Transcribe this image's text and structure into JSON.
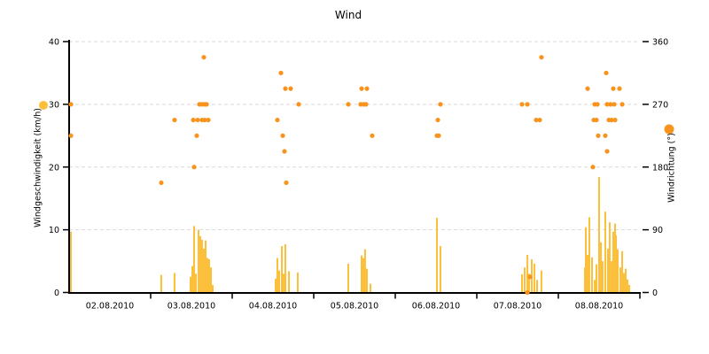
{
  "chart_data": {
    "type": "mixed",
    "title": "Wind",
    "x_axis": {
      "unit": "days since 02.08.2010 00:00",
      "labels": [
        "02.08.2010",
        "03.08.2010",
        "04.08.2010",
        "05.08.2010",
        "06.08.2010",
        "07.08.2010",
        "08.08.2010"
      ],
      "range_days": [
        0,
        7
      ]
    },
    "left_axis": {
      "title": "Windgeschwindigkeit (km/h)",
      "min": 0,
      "max": 40,
      "ticks": [
        0,
        10,
        20,
        30,
        40
      ]
    },
    "right_axis": {
      "title": "Windrichtung (°)",
      "min": 0,
      "max": 360,
      "ticks": [
        0,
        90,
        180,
        270,
        360
      ]
    },
    "grid": {
      "horizontal": "dashed",
      "color": "#D9D9D9"
    },
    "colors": {
      "speed": "#FCBF3A",
      "direction": "#F8941D",
      "axis": "#000000"
    },
    "series": [
      {
        "name": "Windgeschwindigkeit",
        "type": "bar",
        "axis": "left",
        "color": "#FCBF3A",
        "points": [
          [
            0.022,
            9.7
          ],
          [
            1.13,
            2.8
          ],
          [
            1.293,
            3.1
          ],
          [
            1.489,
            2.5
          ],
          [
            1.511,
            4.2
          ],
          [
            1.533,
            10.6
          ],
          [
            1.554,
            3.0
          ],
          [
            1.587,
            10.0
          ],
          [
            1.609,
            9.0
          ],
          [
            1.63,
            8.4
          ],
          [
            1.652,
            7.0
          ],
          [
            1.674,
            8.3
          ],
          [
            1.696,
            5.5
          ],
          [
            1.717,
            5.3
          ],
          [
            1.739,
            4.0
          ],
          [
            1.761,
            1.2
          ],
          [
            2.533,
            2.2
          ],
          [
            2.554,
            5.5
          ],
          [
            2.576,
            3.5
          ],
          [
            2.609,
            7.4
          ],
          [
            2.63,
            3.0
          ],
          [
            2.652,
            7.7
          ],
          [
            2.696,
            3.4
          ],
          [
            2.804,
            3.2
          ],
          [
            3.424,
            4.6
          ],
          [
            3.587,
            5.9
          ],
          [
            3.609,
            5.5
          ],
          [
            3.63,
            6.9
          ],
          [
            3.652,
            3.8
          ],
          [
            3.696,
            1.4
          ],
          [
            4.511,
            11.9
          ],
          [
            4.554,
            7.4
          ],
          [
            5.554,
            2.9
          ],
          [
            5.587,
            4.0
          ],
          [
            5.62,
            6.0
          ],
          [
            5.641,
            3.0
          ],
          [
            5.674,
            5.3
          ],
          [
            5.707,
            4.6
          ],
          [
            5.739,
            2.0
          ],
          [
            5.793,
            3.5
          ],
          [
            6.326,
            4.0
          ],
          [
            6.337,
            10.4
          ],
          [
            6.359,
            6.0
          ],
          [
            6.38,
            12.0
          ],
          [
            6.413,
            5.6
          ],
          [
            6.446,
            2.0
          ],
          [
            6.467,
            4.5
          ],
          [
            6.5,
            18.4
          ],
          [
            6.522,
            8.0
          ],
          [
            6.543,
            5.0
          ],
          [
            6.576,
            12.9
          ],
          [
            6.609,
            7.0
          ],
          [
            6.63,
            11.2
          ],
          [
            6.652,
            5.0
          ],
          [
            6.674,
            9.7
          ],
          [
            6.696,
            11.0
          ],
          [
            6.707,
            9.1
          ],
          [
            6.728,
            6.9
          ],
          [
            6.761,
            4.0
          ],
          [
            6.783,
            6.6
          ],
          [
            6.804,
            3.1
          ],
          [
            6.826,
            3.8
          ],
          [
            6.848,
            2.1
          ],
          [
            6.87,
            1.2
          ]
        ]
      },
      {
        "name": "Windrichtung",
        "type": "scatter",
        "axis": "right",
        "color": "#F8941D",
        "points": [
          [
            0.022,
            270
          ],
          [
            0.022,
            225
          ],
          [
            1.13,
            157.5
          ],
          [
            1.293,
            247.5
          ],
          [
            1.522,
            247.5
          ],
          [
            1.533,
            180
          ],
          [
            1.565,
            225
          ],
          [
            1.576,
            247.5
          ],
          [
            1.598,
            270
          ],
          [
            1.63,
            270
          ],
          [
            1.63,
            247.5
          ],
          [
            1.652,
            337.5
          ],
          [
            1.663,
            270
          ],
          [
            1.663,
            247.5
          ],
          [
            1.685,
            270
          ],
          [
            1.707,
            247.5
          ],
          [
            2.554,
            247.5
          ],
          [
            2.598,
            315
          ],
          [
            2.62,
            225
          ],
          [
            2.641,
            202.5
          ],
          [
            2.652,
            292.5
          ],
          [
            2.663,
            157.5
          ],
          [
            2.717,
            292.5
          ],
          [
            2.815,
            270
          ],
          [
            3.424,
            270
          ],
          [
            3.576,
            270
          ],
          [
            3.587,
            292.5
          ],
          [
            3.609,
            270
          ],
          [
            3.641,
            270
          ],
          [
            3.652,
            292.5
          ],
          [
            3.717,
            225
          ],
          [
            4.511,
            225
          ],
          [
            4.533,
            225
          ],
          [
            4.522,
            247.5
          ],
          [
            4.554,
            270
          ],
          [
            5.554,
            270
          ],
          [
            5.62,
            270
          ],
          [
            5.62,
            0
          ],
          [
            5.652,
            22.5
          ],
          [
            5.728,
            247.5
          ],
          [
            5.772,
            247.5
          ],
          [
            5.793,
            337.5
          ],
          [
            6.359,
            292.5
          ],
          [
            6.424,
            180
          ],
          [
            6.435,
            247.5
          ],
          [
            6.446,
            270
          ],
          [
            6.467,
            247.5
          ],
          [
            6.478,
            270
          ],
          [
            6.489,
            225
          ],
          [
            6.576,
            225
          ],
          [
            6.587,
            315
          ],
          [
            6.598,
            270
          ],
          [
            6.598,
            202.5
          ],
          [
            6.62,
            247.5
          ],
          [
            6.641,
            270
          ],
          [
            6.652,
            247.5
          ],
          [
            6.674,
            292.5
          ],
          [
            6.685,
            270
          ],
          [
            6.696,
            247.5
          ],
          [
            6.75,
            292.5
          ],
          [
            6.783,
            270
          ]
        ]
      }
    ],
    "legend": {
      "speed_marker_color": "#FCBF3A",
      "direction_marker_color": "#F8941D"
    }
  }
}
